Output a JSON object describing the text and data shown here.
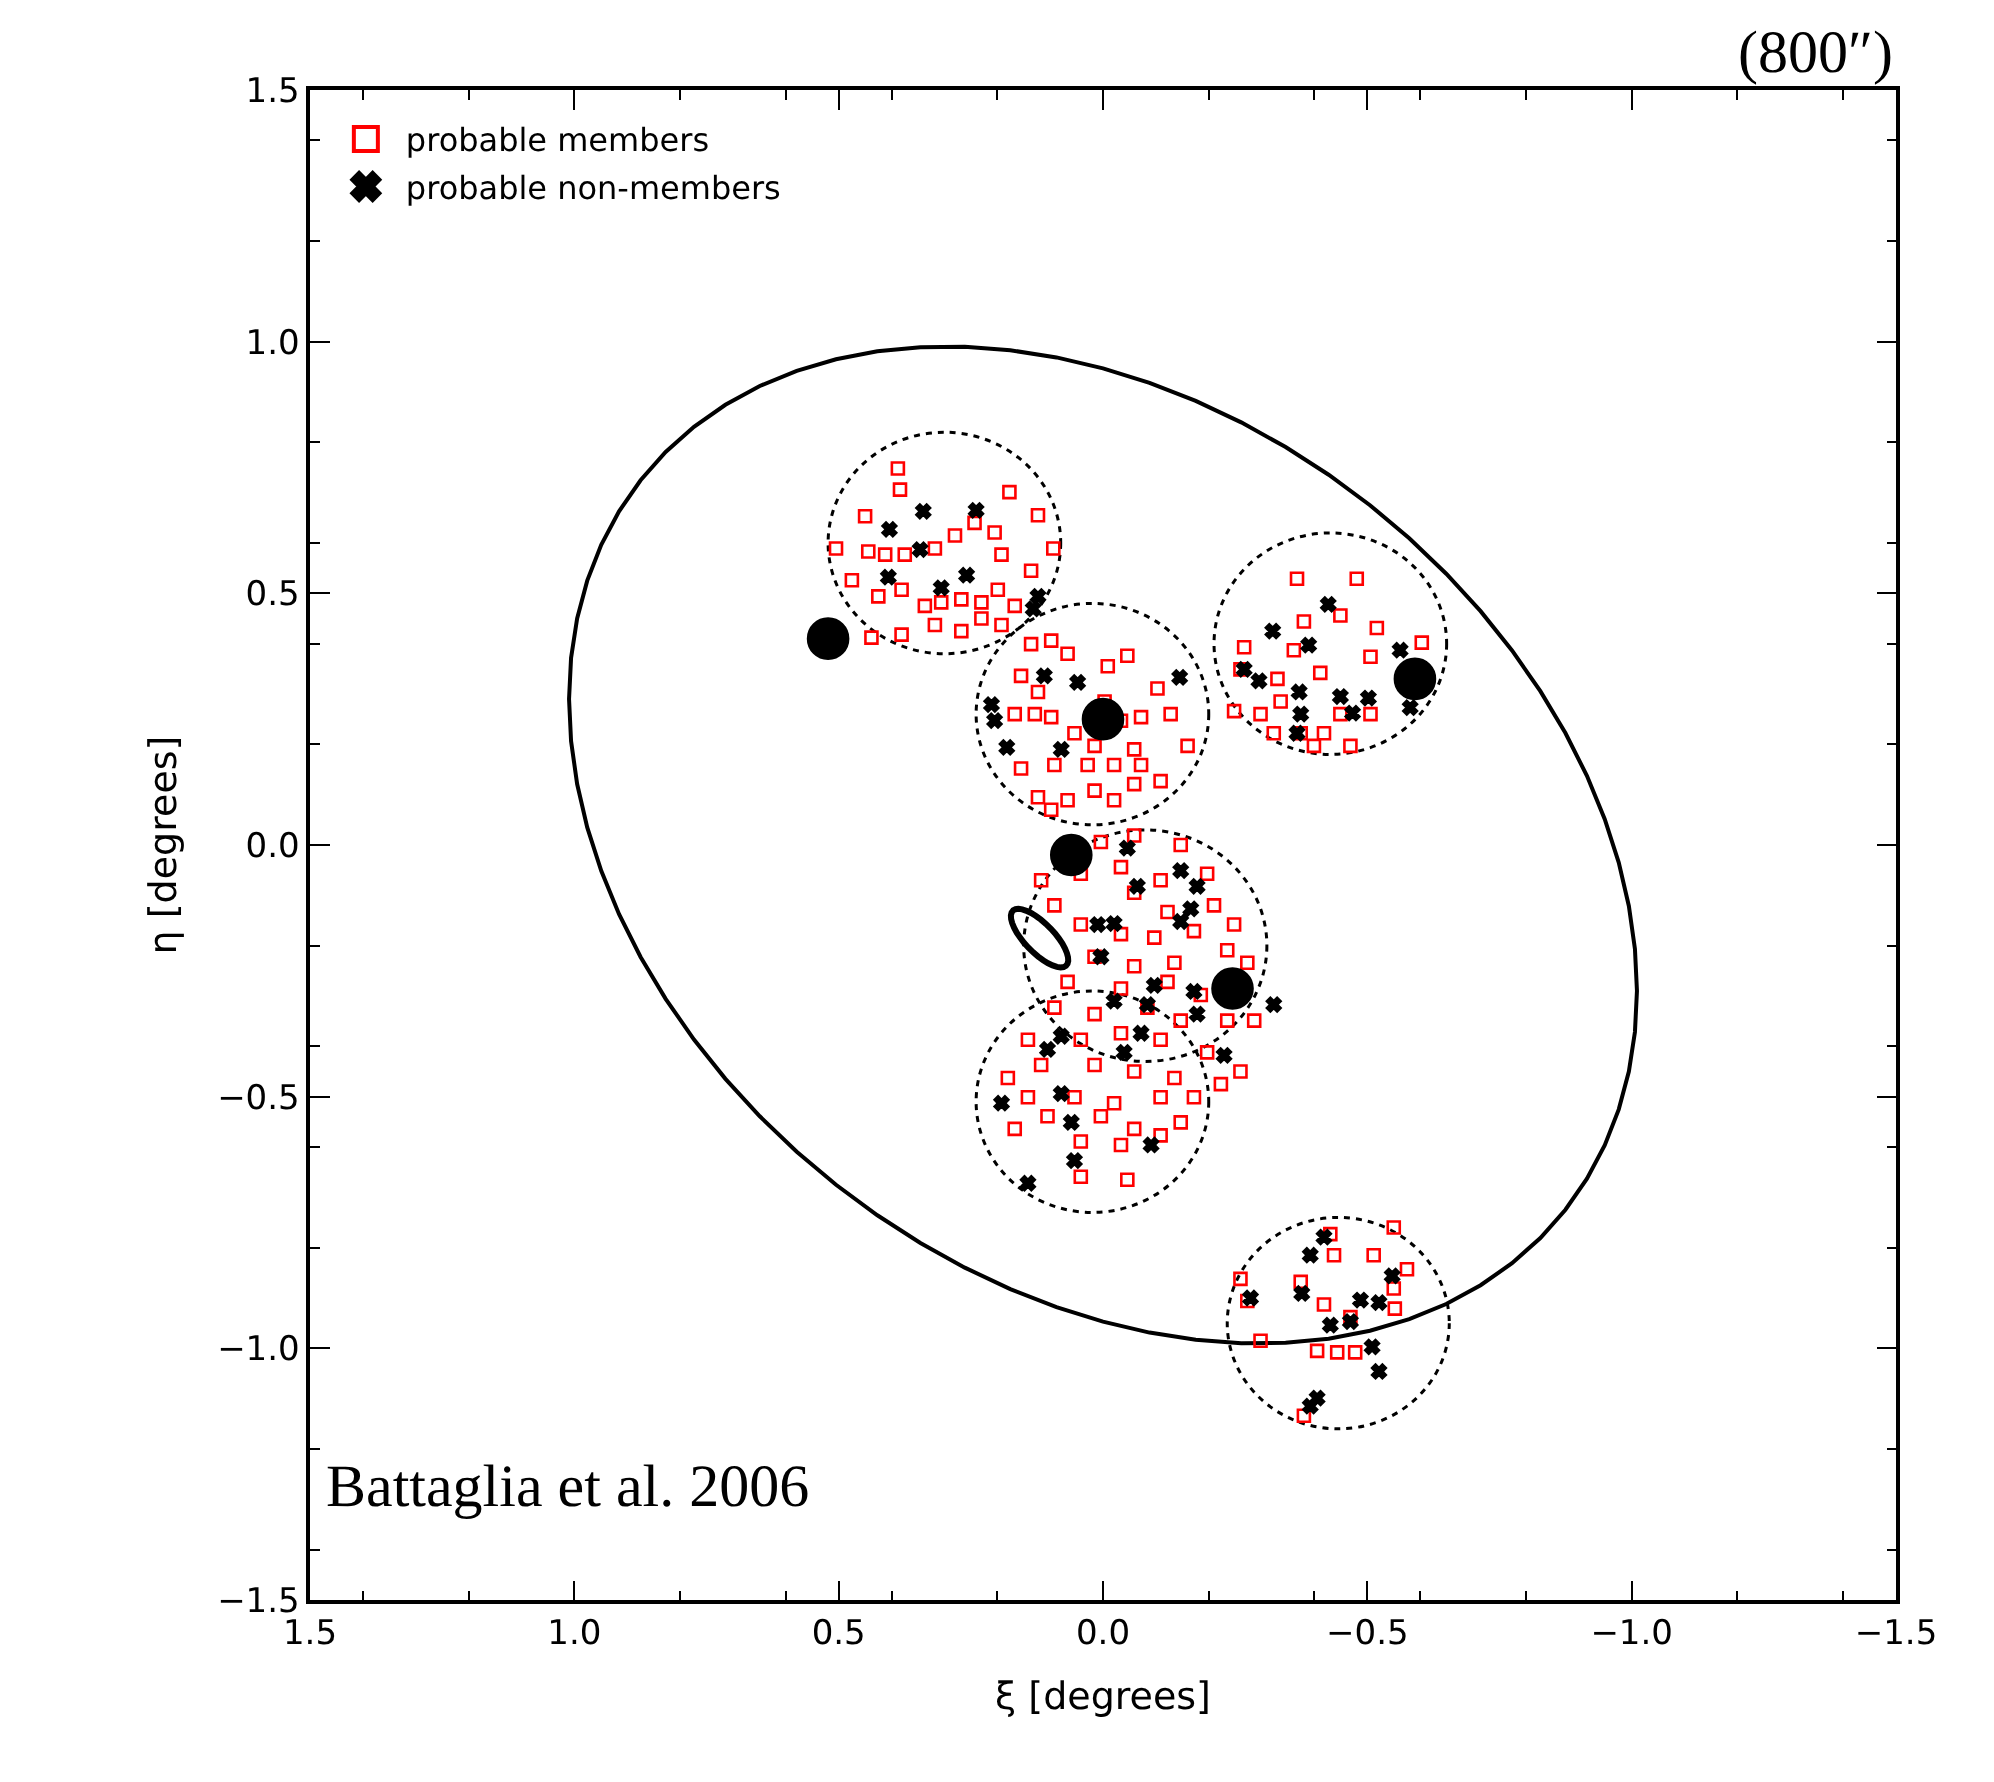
{
  "chart_data": {
    "type": "scatter",
    "xlabel": "ξ [degrees]",
    "ylabel": "η [degrees]",
    "xlim": [
      1.5,
      -1.5
    ],
    "ylim": [
      -1.5,
      1.5
    ],
    "xticks": [
      1.5,
      {
        "value": 1.0,
        "label": "1.0"
      },
      0.5,
      {
        "value": 0.0,
        "label": "0.0"
      },
      {
        "value": -0.5,
        "label": "−0.5"
      },
      {
        "value": -1.0,
        "label": "−1.0"
      },
      {
        "value": -1.5,
        "label": "−1.5"
      }
    ],
    "yticks": [
      {
        "value": -1.5,
        "label": "−1.5"
      },
      {
        "value": -1.0,
        "label": "−1.0"
      },
      {
        "value": -0.5,
        "label": "−0.5"
      },
      {
        "value": 0.0,
        "label": "0.0"
      },
      0.5,
      {
        "value": 1.0,
        "label": "1.0"
      },
      1.5
    ],
    "grid": false,
    "legend": "top left",
    "annotations": [
      "Battaglia et al. 2006",
      "(800″)"
    ],
    "series": [
      {
        "name": "probable members",
        "color": "#ff0000",
        "marker": "square",
        "x": [
          0.388,
          0.384,
          0.177,
          0.45,
          0.123,
          0.094,
          0.505,
          0.444,
          0.412,
          0.375,
          0.318,
          0.28,
          0.243,
          0.205,
          0.192,
          0.475,
          0.425,
          0.381,
          0.337,
          0.306,
          0.268,
          0.23,
          0.199,
          0.167,
          0.136,
          0.438,
          0.381,
          0.318,
          0.268,
          0.23,
          0.192,
          0.136,
          0.098,
          0.067,
          -0.046,
          0.155,
          0.123,
          -0.009,
          -0.103,
          -0.003,
          -0.034,
          -0.072,
          -0.128,
          0.167,
          0.129,
          0.098,
          0.054,
          0.016,
          -0.059,
          -0.16,
          0.155,
          0.092,
          0.029,
          -0.021,
          -0.072,
          0.123,
          0.067,
          0.016,
          -0.059,
          -0.109,
          0.098,
          -0.021,
          -0.367,
          -0.48,
          -0.38,
          -0.449,
          -0.518,
          -0.267,
          -0.361,
          -0.506,
          -0.603,
          -0.26,
          -0.33,
          -0.411,
          -0.336,
          -0.248,
          -0.298,
          -0.323,
          -0.374,
          -0.418,
          -0.449,
          -0.506,
          -0.468,
          -0.399,
          0.004,
          -0.059,
          -0.147,
          0.117,
          0.042,
          -0.034,
          -0.109,
          -0.197,
          0.092,
          -0.059,
          -0.122,
          -0.21,
          -0.248,
          0.042,
          -0.034,
          -0.097,
          -0.172,
          -0.235,
          0.016,
          -0.059,
          -0.135,
          -0.273,
          0.067,
          -0.034,
          -0.122,
          -0.185,
          -0.286,
          0.092,
          0.016,
          -0.084,
          -0.147,
          -0.235,
          0.142,
          0.042,
          -0.034,
          -0.109,
          -0.197,
          -0.26,
          0.18,
          0.117,
          0.016,
          -0.059,
          -0.135,
          -0.223,
          0.142,
          0.054,
          -0.021,
          -0.109,
          -0.172,
          0.167,
          0.105,
          0.004,
          -0.059,
          -0.147,
          0.042,
          -0.034,
          -0.109,
          -0.046,
          0.042,
          -0.43,
          -0.437,
          -0.55,
          -0.512,
          -0.575,
          -0.55,
          -0.26,
          -0.374,
          -0.418,
          -0.273,
          -0.468,
          -0.552,
          -0.298,
          -0.405,
          -0.443,
          -0.477,
          -0.38
        ],
        "values": [
          0.748,
          0.706,
          0.701,
          0.653,
          0.655,
          0.589,
          0.589,
          0.583,
          0.577,
          0.577,
          0.589,
          0.615,
          0.64,
          0.621,
          0.577,
          0.526,
          0.494,
          0.507,
          0.475,
          0.482,
          0.488,
          0.482,
          0.507,
          0.475,
          0.545,
          0.412,
          0.418,
          0.437,
          0.425,
          0.45,
          0.437,
          0.399,
          0.406,
          0.38,
          0.376,
          0.336,
          0.304,
          0.355,
          0.311,
          0.285,
          0.247,
          0.254,
          0.26,
          0.26,
          0.26,
          0.254,
          0.222,
          0.197,
          0.19,
          0.197,
          0.152,
          0.159,
          0.159,
          0.159,
          0.159,
          0.095,
          0.089,
          0.108,
          0.121,
          0.127,
          0.07,
          0.089,
          0.529,
          0.529,
          0.444,
          0.456,
          0.431,
          0.393,
          0.387,
          0.374,
          0.402,
          0.349,
          0.33,
          0.342,
          0.285,
          0.266,
          0.26,
          0.222,
          0.222,
          0.222,
          0.26,
          0.26,
          0.197,
          0.197,
          0.006,
          0.019,
          0.0,
          -0.07,
          -0.057,
          -0.044,
          -0.07,
          -0.057,
          -0.12,
          -0.095,
          -0.133,
          -0.12,
          -0.158,
          -0.158,
          -0.177,
          -0.184,
          -0.171,
          -0.209,
          -0.222,
          -0.241,
          -0.234,
          -0.234,
          -0.272,
          -0.285,
          -0.272,
          -0.298,
          -0.349,
          -0.323,
          -0.336,
          -0.323,
          -0.349,
          -0.349,
          -0.387,
          -0.387,
          -0.374,
          -0.387,
          -0.412,
          -0.45,
          -0.463,
          -0.437,
          -0.437,
          -0.45,
          -0.463,
          -0.475,
          -0.501,
          -0.501,
          -0.513,
          -0.501,
          -0.501,
          -0.564,
          -0.539,
          -0.539,
          -0.564,
          -0.551,
          -0.589,
          -0.596,
          -0.577,
          -0.665,
          -0.659,
          -0.773,
          -0.815,
          -0.76,
          -0.815,
          -0.843,
          -0.881,
          -0.862,
          -0.868,
          -0.913,
          -0.906,
          -0.938,
          -0.921,
          -0.985,
          -1.005,
          -1.008,
          -1.008,
          -1.134
        ]
      },
      {
        "name": "probable non-members",
        "color": "#000000",
        "marker": "cross",
        "x": [
          0.34,
          0.24,
          0.404,
          0.346,
          0.258,
          0.306,
          0.406,
          0.123,
          0.132,
          0.111,
          0.048,
          -0.145,
          0.211,
          0.205,
          0.182,
          0.079,
          -0.426,
          -0.321,
          -0.389,
          -0.267,
          -0.295,
          -0.371,
          -0.449,
          -0.472,
          -0.502,
          -0.374,
          -0.367,
          -0.562,
          -0.581,
          -0.046,
          -0.065,
          -0.147,
          -0.178,
          -0.166,
          -0.147,
          0.01,
          -0.021,
          0.004,
          -0.097,
          -0.021,
          -0.084,
          -0.172,
          -0.178,
          -0.323,
          0.079,
          0.105,
          -0.072,
          -0.04,
          -0.229,
          0.192,
          0.079,
          0.06,
          -0.091,
          0.054,
          0.142,
          -0.418,
          -0.392,
          -0.279,
          -0.376,
          -0.487,
          -0.522,
          -0.547,
          -0.43,
          -0.468,
          -0.509,
          -0.522,
          -0.405,
          -0.392
        ],
        "values": [
          0.663,
          0.665,
          0.627,
          0.587,
          0.536,
          0.511,
          0.532,
          0.494,
          0.469,
          0.336,
          0.323,
          0.333,
          0.279,
          0.247,
          0.194,
          0.19,
          0.478,
          0.425,
          0.397,
          0.349,
          0.326,
          0.304,
          0.295,
          0.262,
          0.292,
          0.26,
          0.222,
          0.387,
          0.273,
          -0.006,
          -0.082,
          -0.051,
          -0.082,
          -0.127,
          -0.152,
          -0.158,
          -0.156,
          -0.222,
          -0.279,
          -0.31,
          -0.317,
          -0.291,
          -0.336,
          -0.317,
          -0.38,
          -0.406,
          -0.374,
          -0.412,
          -0.418,
          -0.513,
          -0.494,
          -0.551,
          -0.596,
          -0.627,
          -0.672,
          -0.779,
          -0.815,
          -0.9,
          -0.891,
          -0.904,
          -0.909,
          -0.856,
          -0.954,
          -0.947,
          -0.997,
          -1.046,
          -1.099,
          -1.115
        ]
      },
      {
        "color": "#000000",
        "marker": "circle",
        "x": [
          0.52,
          0.0,
          0.06,
          -0.245,
          -0.59
        ],
        "values": [
          0.41,
          0.25,
          -0.02,
          -0.285,
          0.33
        ]
      }
    ]
  }
}
